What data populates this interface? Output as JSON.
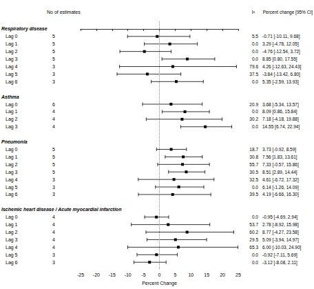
{
  "chart_data": {
    "type": "forest",
    "x_label": "Percent Change",
    "xlim": [
      -25,
      25
    ],
    "xticks": [
      -25,
      -20,
      -15,
      -10,
      -5,
      0,
      5,
      10,
      15,
      20,
      25
    ],
    "grid": false,
    "color": "#000000",
    "reference_line": 0,
    "headers": {
      "count": "No of estimates",
      "i2": "I²",
      "estimate": "Percent change [95% CI]"
    },
    "groups": [
      {
        "name": "Respiratory disease",
        "rows": [
          {
            "label": "Lag 0",
            "n": 5,
            "i2": 5.5,
            "estimate": -0.71,
            "lower": -10.11,
            "upper": 9.68,
            "ci_label": "-0.71 [-10.11, 9.68]"
          },
          {
            "label": "Lag 1",
            "n": 5,
            "i2": {
              "value": 0,
              "label": "0.0"
            },
            "estimate": 3.29,
            "lower": -4.78,
            "upper": 12.05,
            "ci_label": "3.29 [-4.78, 12.05]"
          },
          {
            "label": "Lag 2",
            "n": 5,
            "i2": {
              "value": 0,
              "label": "0.0"
            },
            "estimate": -4.76,
            "lower": -12.54,
            "upper": 3.72,
            "ci_label": "-4.76 [-12.54, 3.72]"
          },
          {
            "label": "Lag 3",
            "n": 5,
            "i2": {
              "value": 0,
              "label": "0.0"
            },
            "estimate": 8.85,
            "lower": 0.8,
            "upper": 17.55,
            "ci_label": "8.85 [0.80, 17.55]"
          },
          {
            "label": "Lag 4",
            "n": 3,
            "i2": 79.6,
            "estimate": 4.26,
            "lower": -12.63,
            "upper": 24.43,
            "ci_label": "4.26 [-12.63, 24.43]"
          },
          {
            "label": "Lag 5",
            "n": 3,
            "i2": 37.5,
            "estimate": -3.84,
            "lower": -13.42,
            "upper": 6.8,
            "ci_label": "-3.84 [-13.42, 6.80]"
          },
          {
            "label": "Lag 6",
            "n": 3,
            "i2": {
              "value": 0,
              "label": "0.0"
            },
            "estimate": 5.35,
            "lower": -2.59,
            "upper": 13.93,
            "ci_label": "5.35 [-2.59, 13.93]"
          }
        ]
      },
      {
        "name": "Asthma",
        "rows": [
          {
            "label": "Lag 0",
            "n": 6,
            "i2": 20.9,
            "estimate": 3.68,
            "lower": -5.34,
            "upper": 13.57,
            "ci_label": "3.68 [-5.34, 13.57]"
          },
          {
            "label": "Lag 1",
            "n": 4,
            "i2": {
              "value": 0,
              "label": "0.0"
            },
            "estimate": 8.09,
            "lower": 0.86,
            "upper": 15.84,
            "ci_label": "8.09 [0.86, 15.84]"
          },
          {
            "label": "Lag 2",
            "n": 4,
            "i2": 30.2,
            "estimate": 7.18,
            "lower": -4.18,
            "upper": 19.88,
            "ci_label": "7.18 [-4.18, 19.88]"
          },
          {
            "label": "Lag 3",
            "n": 4,
            "i2": {
              "value": 0,
              "label": "0.0"
            },
            "estimate": 14.55,
            "lower": 6.74,
            "upper": 22.94,
            "ci_label": "14.55 [6.74, 22.94]"
          }
        ]
      },
      {
        "name": "Pneumonia",
        "rows": [
          {
            "label": "Lag 0",
            "n": 5,
            "i2": 18.7,
            "estimate": 3.73,
            "lower": -0.92,
            "upper": 8.59,
            "ci_label": "3.73 [-0.92, 8.59]"
          },
          {
            "label": "Lag 1",
            "n": 5,
            "i2": 30.8,
            "estimate": 7.56,
            "lower": 1.83,
            "upper": 13.61,
            "ci_label": "7.56 [1.83, 13.61]"
          },
          {
            "label": "Lag 2",
            "n": 5,
            "i2": 55.7,
            "estimate": 7.33,
            "lower": -0.57,
            "upper": 15.86,
            "ci_label": "7.33 [-0.57, 15.86]"
          },
          {
            "label": "Lag 3",
            "n": 5,
            "i2": 30.5,
            "estimate": 8.51,
            "lower": 2.89,
            "upper": 14.44,
            "ci_label": "8.51 [2.89, 14.44]"
          },
          {
            "label": "Lag 4",
            "n": 3,
            "i2": 32.5,
            "estimate": 4.61,
            "lower": -6.72,
            "upper": 17.32,
            "ci_label": "4.61 [-6.72, 17.32]"
          },
          {
            "label": "Lag 5",
            "n": 3,
            "i2": {
              "value": 0,
              "label": "0.0"
            },
            "estimate": 6.14,
            "lower": -1.26,
            "upper": 14.09,
            "ci_label": "6.14 [-1.26, 14.09]"
          },
          {
            "label": "Lag 6",
            "n": 3,
            "i2": 39.5,
            "estimate": 4.19,
            "lower": -6.66,
            "upper": 16.3,
            "ci_label": "4.19 [-6.66, 16.30]"
          }
        ]
      },
      {
        "name": "Ischemic heart disease / Acute myocardial infarction",
        "rows": [
          {
            "label": "Lag 0",
            "n": 4,
            "i2": {
              "value": 0,
              "label": "0.0"
            },
            "estimate": -0.95,
            "lower": -4.69,
            "upper": 2.94,
            "ci_label": "-0.95 [-4.69, 2.94]"
          },
          {
            "label": "Lag 1",
            "n": 4,
            "i2": 53.7,
            "estimate": 2.78,
            "lower": -8.92,
            "upper": 15.98,
            "ci_label": "2.78 [-8.92, 15.98]"
          },
          {
            "label": "Lag 2",
            "n": 4,
            "i2": 60.2,
            "estimate": 8.77,
            "lower": -4.27,
            "upper": 23.58,
            "ci_label": "8.77 [-4.27, 23.58]"
          },
          {
            "label": "Lag 3",
            "n": 4,
            "i2": 29.5,
            "estimate": 5.09,
            "lower": -3.94,
            "upper": 14.97,
            "ci_label": "5.09 [-3.94, 14.97]"
          },
          {
            "label": "Lag 4",
            "n": 4,
            "i2": 65.3,
            "estimate": 6.0,
            "lower": -10.03,
            "upper": 24.9,
            "ci_label": "6.00 [-10.03, 24.90]"
          },
          {
            "label": "Lag 5",
            "n": 3,
            "i2": {
              "value": 0,
              "label": "0.0"
            },
            "estimate": -0.92,
            "lower": -7.11,
            "upper": 5.69,
            "ci_label": "-0.92 [-7.11, 5.69]"
          },
          {
            "label": "Lag 6",
            "n": 3,
            "i2": {
              "value": 0,
              "label": "0.0"
            },
            "estimate": -3.12,
            "lower": -8.08,
            "upper": 2.11,
            "ci_label": "-3.12 [-8.08, 2.11]"
          }
        ]
      }
    ]
  }
}
